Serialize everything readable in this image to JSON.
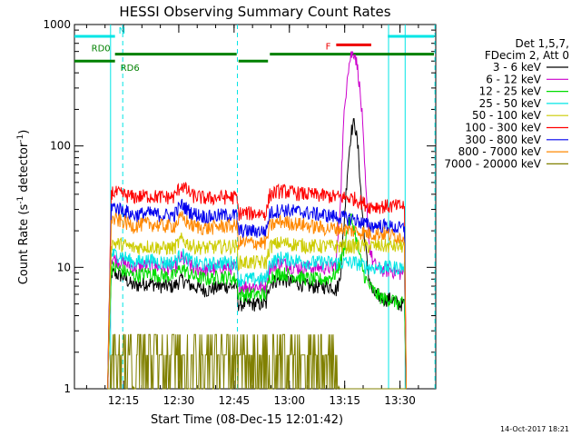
{
  "chart_data": {
    "type": "line",
    "title": "HESSI Observing Summary Count Rates",
    "xlabel": "Start Time (08-Dec-15 12:01:42)",
    "ylabel_main": "Count Rate (s",
    "ylabel_sup1": "-1",
    "ylabel_mid": " detector",
    "ylabel_sup2": "-1",
    "ylabel_end": ")",
    "footer": "14-Oct-2017 18:21",
    "yscale": "log",
    "ylim": [
      1,
      1000
    ],
    "xlim": [
      0,
      98
    ],
    "ytick_labels": [
      {
        "value": 1,
        "label": "1"
      },
      {
        "value": 10,
        "label": "10"
      },
      {
        "value": 100,
        "label": "100"
      },
      {
        "value": 1000,
        "label": "1000"
      }
    ],
    "xtick_labels": [
      {
        "value": 13.3,
        "label": "12:15"
      },
      {
        "value": 28.3,
        "label": "12:30"
      },
      {
        "value": 43.3,
        "label": "12:45"
      },
      {
        "value": 58.3,
        "label": "13:00"
      },
      {
        "value": 73.3,
        "label": "13:15"
      },
      {
        "value": 88.3,
        "label": "13:30"
      }
    ],
    "legend_header": [
      "Det 1,5,7,",
      "FDecim 2, Att 0"
    ],
    "series": [
      {
        "name": "3 - 6 keV",
        "color": "#000000",
        "base": 7.5,
        "x": [
          9,
          10,
          13,
          16,
          20,
          24,
          27,
          29,
          32,
          36,
          40,
          44,
          44.5,
          52,
          53,
          56,
          60,
          64,
          66,
          68,
          70,
          71,
          72,
          73,
          74,
          75,
          76,
          77,
          78,
          79.5,
          80,
          81,
          82,
          84,
          86,
          88,
          89.5,
          90
        ],
        "y": [
          1,
          9,
          8.5,
          7,
          7.5,
          7,
          7,
          8,
          7,
          6.5,
          7,
          7,
          5,
          5,
          7.5,
          8,
          7.5,
          7,
          7,
          7,
          7,
          6.5,
          8,
          20,
          60,
          130,
          160,
          90,
          30,
          10,
          8,
          6,
          6,
          5.5,
          5.5,
          5,
          5,
          1
        ]
      },
      {
        "name": "6 - 12 keV",
        "color": "#cc00cc",
        "base": 10,
        "x": [
          9,
          10,
          13,
          16,
          20,
          24,
          27,
          29,
          32,
          36,
          40,
          44,
          44.5,
          52,
          53,
          56,
          60,
          64,
          68,
          70,
          71,
          72,
          73,
          74,
          75,
          76,
          77,
          78,
          79,
          80,
          81,
          82,
          84,
          86,
          88,
          89.5,
          90
        ],
        "y": [
          1,
          12,
          11,
          10,
          10.5,
          10,
          10,
          12,
          10,
          9.5,
          10,
          10,
          7,
          7,
          10,
          11,
          10,
          10,
          10,
          10,
          11,
          30,
          150,
          400,
          560,
          600,
          400,
          180,
          45,
          15,
          11,
          10,
          9.5,
          9.5,
          9,
          9,
          1
        ]
      },
      {
        "name": "12 - 25 keV",
        "color": "#00dd00",
        "base": 9,
        "x": [
          9,
          10,
          13,
          16,
          20,
          24,
          27,
          29,
          32,
          36,
          40,
          44,
          44.5,
          52,
          53,
          56,
          60,
          64,
          68,
          70,
          71,
          72,
          73,
          74,
          75,
          76,
          77,
          78,
          79,
          80,
          82,
          84,
          86,
          88,
          89.5,
          90
        ],
        "y": [
          1,
          10,
          9.5,
          8.5,
          9,
          8.5,
          8.5,
          10,
          8.5,
          8,
          8.5,
          8,
          6,
          6,
          8.5,
          9,
          8.5,
          8,
          8,
          8.5,
          9,
          11,
          14,
          20,
          26,
          20,
          14,
          10,
          8,
          7,
          6,
          5.5,
          5.5,
          5,
          5,
          1
        ]
      },
      {
        "name": "25 - 50 keV",
        "color": "#00e5e5",
        "base": 12,
        "x": [
          9,
          10,
          13,
          16,
          20,
          24,
          27,
          29,
          32,
          36,
          40,
          44,
          44.5,
          52,
          53,
          56,
          60,
          64,
          68,
          72,
          76,
          80,
          84,
          88,
          89.5,
          90
        ],
        "y": [
          1,
          13,
          12.5,
          11,
          11.5,
          11,
          11,
          13,
          11,
          10.5,
          11,
          11,
          8,
          8,
          11,
          12,
          11.5,
          11,
          11,
          11,
          11,
          10,
          10,
          10,
          10,
          1
        ]
      },
      {
        "name": "50 - 100 keV",
        "color": "#cccc00",
        "base": 17,
        "x": [
          9,
          10,
          13,
          16,
          20,
          24,
          27,
          29,
          32,
          36,
          40,
          44,
          44.5,
          52,
          53,
          56,
          60,
          64,
          68,
          72,
          76,
          80,
          84,
          88,
          89.5,
          90
        ],
        "y": [
          1,
          16,
          15.5,
          14.5,
          15,
          14.5,
          14.5,
          17,
          15,
          14.5,
          15,
          15,
          11,
          11,
          15,
          16,
          15.5,
          15,
          15,
          15,
          15,
          15,
          15,
          15,
          15,
          1
        ]
      },
      {
        "name": "100 - 300 keV",
        "color": "#ff0000",
        "base": 40,
        "x": [
          9,
          10,
          13,
          16,
          20,
          24,
          27,
          29,
          32,
          36,
          40,
          44,
          44.5,
          52,
          53,
          56,
          60,
          64,
          68,
          72,
          76,
          80,
          84,
          88,
          89.5,
          90
        ],
        "y": [
          1,
          42,
          40,
          38,
          39,
          38,
          38,
          48,
          39,
          37,
          38,
          38,
          28,
          28,
          40,
          43,
          41,
          40,
          39,
          38,
          37,
          32,
          32,
          32,
          32,
          1
        ]
      },
      {
        "name": "300 - 800 keV",
        "color": "#0000ee",
        "base": 30,
        "x": [
          9,
          10,
          13,
          16,
          20,
          24,
          27,
          29,
          32,
          36,
          40,
          44,
          44.5,
          52,
          53,
          56,
          60,
          64,
          68,
          72,
          76,
          80,
          84,
          88,
          89.5,
          90
        ],
        "y": [
          1,
          32,
          30,
          27,
          28,
          27,
          27,
          33,
          28,
          26,
          27,
          27,
          20,
          20,
          28,
          30,
          29,
          28,
          27,
          26,
          25,
          22,
          22,
          21,
          21,
          1
        ]
      },
      {
        "name": "800 - 7000 keV",
        "color": "#ff8800",
        "base": 24,
        "x": [
          9,
          10,
          13,
          16,
          20,
          24,
          27,
          29,
          32,
          36,
          40,
          44,
          44.5,
          52,
          53,
          56,
          60,
          64,
          68,
          72,
          76,
          80,
          84,
          88,
          89.5,
          90
        ],
        "y": [
          1,
          25,
          24,
          22,
          23,
          22,
          22,
          26,
          22,
          21,
          22,
          22,
          16,
          16,
          22,
          24,
          23,
          22,
          21,
          21,
          20,
          19,
          19,
          18,
          18,
          1
        ]
      },
      {
        "name": "7000 - 20000 keV",
        "color": "#808000",
        "base": 1.8,
        "x": [
          9,
          10,
          13,
          16,
          20,
          24,
          28,
          32,
          36,
          40,
          44,
          48,
          52,
          56,
          60,
          64,
          68,
          72,
          76,
          80,
          84,
          88,
          90
        ],
        "y": [
          1,
          2.4,
          2,
          1,
          1.9,
          2,
          2,
          1.8,
          1.6,
          1.8,
          1.5,
          1.8,
          1.8,
          1.9,
          1.8,
          1.8,
          1.7,
          1,
          1,
          1,
          1,
          1,
          1
        ]
      }
    ],
    "annotations": [
      {
        "label": "N",
        "color": "#00e5e5",
        "x_start": -3,
        "x_end": 11,
        "value": 800
      },
      {
        "label": "",
        "color": "#00e5e5",
        "x_start": 85,
        "x_end": 98,
        "value": 800
      },
      {
        "label": "F",
        "color": "#ee0000",
        "x_start": 71,
        "x_end": 80.5,
        "value": 680
      },
      {
        "label": "RD0",
        "color": "#008000",
        "x_start": 11,
        "x_end": 44,
        "value": 570
      },
      {
        "label": "RD6",
        "color": "#008000",
        "x_start": -3,
        "x_end": 11,
        "value": 500
      },
      {
        "label": "",
        "color": "#008000",
        "x_start": 44.5,
        "x_end": 52.5,
        "value": 500
      },
      {
        "label": "",
        "color": "#008000",
        "x_start": 53,
        "x_end": 98,
        "value": 570
      }
    ],
    "vertical_lines": [
      {
        "x": 9.8,
        "color": "#00e5e5",
        "style": "solid"
      },
      {
        "x": 13.1,
        "color": "#00e5e5",
        "style": "dashed"
      },
      {
        "x": 44.2,
        "color": "#00e5e5",
        "style": "dashed"
      },
      {
        "x": 85.2,
        "color": "#00e5e5",
        "style": "solid"
      },
      {
        "x": 89.7,
        "color": "#00e5e5",
        "style": "solid"
      },
      {
        "x": 97.8,
        "color": "#00e5e5",
        "style": "dashed"
      }
    ]
  }
}
